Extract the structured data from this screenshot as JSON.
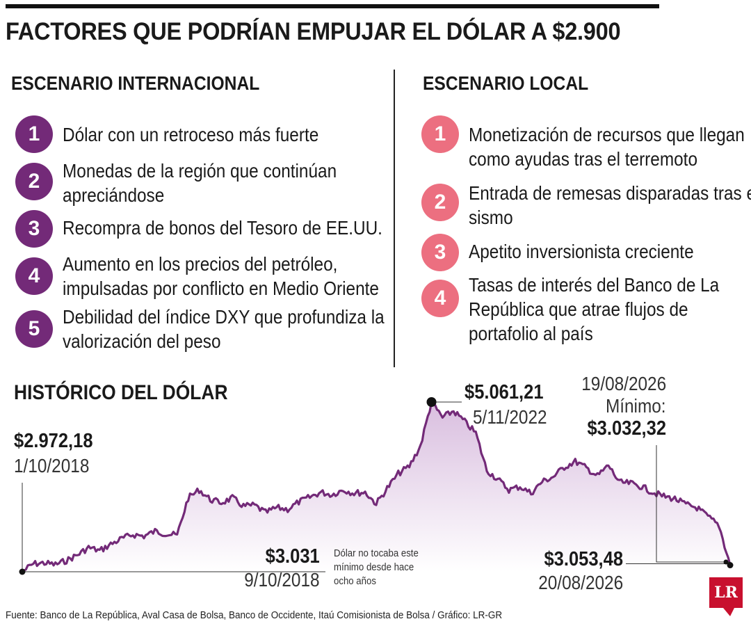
{
  "title": "FACTORES QUE PODRÍAN EMPUJAR EL DÓLAR A $2.900",
  "international": {
    "heading": "ESCENARIO INTERNACIONAL",
    "items": [
      {
        "num": "1",
        "lines": [
          "Dólar con un retroceso más fuerte"
        ]
      },
      {
        "num": "2",
        "lines": [
          "Monedas de la región que continúan",
          "apreciándose"
        ]
      },
      {
        "num": "3",
        "lines": [
          "Recompra de bonos del Tesoro de EE.UU."
        ]
      },
      {
        "num": "4",
        "lines": [
          "Aumento en los precios del petróleo,",
          "impulsadas por conflicto en Medio Oriente"
        ]
      },
      {
        "num": "5",
        "lines": [
          "Debilidad del índice DXY que profundiza la",
          "valorización del peso"
        ]
      }
    ]
  },
  "local": {
    "heading": "ESCENARIO LOCAL",
    "items": [
      {
        "num": "1",
        "lines": [
          "Monetización de recursos que llegan",
          "como ayudas tras el terremoto"
        ]
      },
      {
        "num": "2",
        "lines": [
          "Entrada de remesas disparadas tras el",
          "sismo"
        ]
      },
      {
        "num": "3",
        "lines": [
          "Apetito inversionista creciente"
        ]
      },
      {
        "num": "4",
        "lines": [
          "Tasas de interés del Banco de La",
          "República que atrae flujos de",
          "portafolio al país"
        ]
      }
    ]
  },
  "colors": {
    "line": "#732a78",
    "fill_top": "#d9bedf",
    "fill_bottom": "#ffffff",
    "purple_badge": "#732a78",
    "pink_badge": "#ec6f80",
    "logo": "#c8102e"
  },
  "chart_data": {
    "type": "area",
    "title": "HISTÓRICO DEL DÓLAR",
    "x_start": "2018-10-01",
    "x_end": "2026-08-20",
    "ylim": [
      2900,
      5200
    ],
    "series": [
      {
        "values": [
          2972,
          3070,
          3080,
          3060,
          3110,
          3180,
          3270,
          3230,
          3310,
          3380,
          3430,
          3410,
          3470,
          3440,
          3420,
          3880,
          3980,
          3860,
          3820,
          3880,
          3780,
          3790,
          3700,
          3760,
          3740,
          3830,
          3890,
          3950,
          3920,
          3980,
          3940,
          3950,
          3810,
          4000,
          4180,
          4270,
          4520,
          5061,
          4870,
          4950,
          4820,
          4680,
          4220,
          4110,
          3980,
          4020,
          3940,
          4080,
          4140,
          4260,
          4330,
          4250,
          4150,
          4280,
          4070,
          4060,
          4020,
          3950,
          3900,
          3870,
          3800,
          3760,
          3650,
          3540,
          3053
        ]
      }
    ],
    "annotations": [
      {
        "value": "$2.972,18",
        "date": "1/10/2018"
      },
      {
        "value": "$3.031",
        "date": "9/10/2018"
      },
      {
        "value": "$5.061,21",
        "date": "5/11/2022"
      },
      {
        "date": "19/08/2026",
        "label": "Mínimo:",
        "value": "$3.032,32"
      },
      {
        "value": "$3.053,48",
        "date": "20/08/2026"
      }
    ],
    "note_lines": [
      "Dólar no tocaba este",
      "mínimo desde hace",
      "ocho años"
    ]
  },
  "source": "Fuente: Banco de La República, Aval Casa de Bolsa, Banco de Occidente, Itaú Comisionista de Bolsa / Gráfico: LR-GR",
  "logo": "LR"
}
